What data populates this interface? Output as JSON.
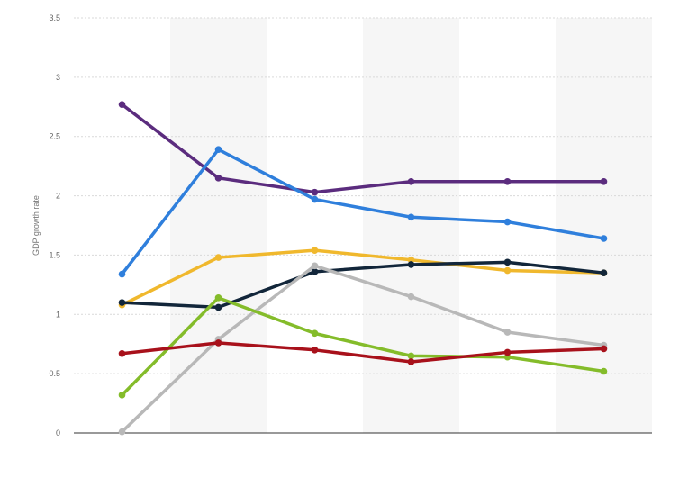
{
  "chart_data": {
    "type": "line",
    "title": "",
    "xlabel": "",
    "ylabel": "GDP growth rate",
    "ylim": [
      0,
      3.5
    ],
    "yticks": [
      {
        "value": 0,
        "label": "0"
      },
      {
        "value": 0.5,
        "label": "0.5"
      },
      {
        "value": 1,
        "label": "1"
      },
      {
        "value": 1.5,
        "label": "1.5"
      },
      {
        "value": 2,
        "label": "2"
      },
      {
        "value": 2.5,
        "label": "2.5"
      },
      {
        "value": 3,
        "label": "3"
      },
      {
        "value": 3.5,
        "label": "3.5"
      }
    ],
    "categories": [
      "",
      "",
      "",
      "",
      "",
      ""
    ],
    "grid": true,
    "legend": "none",
    "series": [
      {
        "color": "#5b2c7e",
        "values": [
          2.77,
          2.15,
          2.03,
          2.12,
          2.12,
          2.12
        ]
      },
      {
        "color": "#2f7fdc",
        "values": [
          1.34,
          2.39,
          1.97,
          1.82,
          1.78,
          1.64
        ]
      },
      {
        "color": "#f0b82d",
        "values": [
          1.08,
          1.48,
          1.54,
          1.46,
          1.37,
          1.35
        ]
      },
      {
        "color": "#12263a",
        "values": [
          1.1,
          1.06,
          1.36,
          1.42,
          1.44,
          1.35
        ]
      },
      {
        "color": "#b8b8b8",
        "values": [
          0.01,
          0.79,
          1.41,
          1.15,
          0.85,
          0.74
        ]
      },
      {
        "color": "#84bc2a",
        "values": [
          0.32,
          1.14,
          0.84,
          0.65,
          0.64,
          0.52
        ]
      },
      {
        "color": "#a8111b",
        "values": [
          0.67,
          0.76,
          0.7,
          0.6,
          0.68,
          0.71
        ]
      }
    ]
  }
}
